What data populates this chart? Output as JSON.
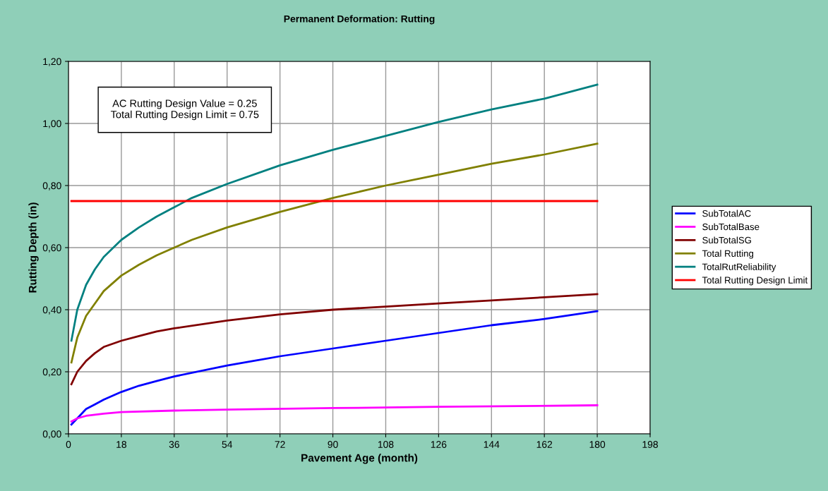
{
  "chart_data": {
    "type": "line",
    "title": "Permanent Deformation: Rutting",
    "xlabel": "Pavement Age (month)",
    "ylabel": "Rutting Depth (in)",
    "annotations": [
      "AC Rutting Design Value = 0.25\nTotal Rutting Design Limit = 0.75"
    ],
    "xlim": [
      0,
      198
    ],
    "xticks": [
      0,
      18,
      36,
      54,
      72,
      90,
      108,
      126,
      144,
      162,
      180,
      198
    ],
    "ylim": [
      0,
      1.2
    ],
    "yticks": [
      {
        "value": 0,
        "label": "0,00"
      },
      {
        "value": 0.2,
        "label": "0,20"
      },
      {
        "value": 0.4,
        "label": "0,40"
      },
      {
        "value": 0.6,
        "label": "0,60"
      },
      {
        "value": 0.8,
        "label": "0,80"
      },
      {
        "value": 1.0,
        "label": "1,00"
      },
      {
        "value": 1.2,
        "label": "1,20"
      }
    ],
    "grid": true,
    "legend": "right",
    "marker": "none",
    "line_style": "solid",
    "series": [
      {
        "name": "SubTotalAC",
        "color": "#0000ff",
        "x": [
          1,
          3,
          6,
          9,
          12,
          18,
          24,
          30,
          36,
          54,
          72,
          90,
          108,
          126,
          144,
          162,
          180
        ],
        "values": [
          0.03,
          0.05,
          0.08,
          0.095,
          0.11,
          0.135,
          0.155,
          0.17,
          0.185,
          0.22,
          0.25,
          0.275,
          0.3,
          0.325,
          0.35,
          0.37,
          0.395
        ]
      },
      {
        "name": "SubTotalBase",
        "color": "#ff00ff",
        "x": [
          1,
          3,
          6,
          12,
          18,
          36,
          54,
          90,
          126,
          180
        ],
        "values": [
          0.04,
          0.05,
          0.058,
          0.065,
          0.07,
          0.075,
          0.078,
          0.083,
          0.087,
          0.092
        ]
      },
      {
        "name": "SubTotalSG",
        "color": "#800000",
        "x": [
          1,
          3,
          6,
          9,
          12,
          18,
          24,
          30,
          36,
          54,
          72,
          90,
          108,
          126,
          144,
          162,
          180
        ],
        "values": [
          0.16,
          0.2,
          0.235,
          0.26,
          0.28,
          0.3,
          0.315,
          0.33,
          0.34,
          0.365,
          0.385,
          0.4,
          0.41,
          0.42,
          0.43,
          0.44,
          0.45
        ]
      },
      {
        "name": "Total Rutting",
        "color": "#808000",
        "x": [
          1,
          3,
          6,
          9,
          12,
          18,
          24,
          30,
          36,
          42,
          54,
          72,
          90,
          108,
          126,
          144,
          162,
          180
        ],
        "values": [
          0.23,
          0.31,
          0.38,
          0.42,
          0.46,
          0.51,
          0.545,
          0.575,
          0.6,
          0.625,
          0.665,
          0.715,
          0.76,
          0.8,
          0.835,
          0.87,
          0.9,
          0.935
        ]
      },
      {
        "name": "TotalRutReliability",
        "color": "#008080",
        "x": [
          1,
          3,
          6,
          9,
          12,
          18,
          24,
          30,
          36,
          42,
          54,
          72,
          90,
          108,
          126,
          144,
          162,
          180
        ],
        "values": [
          0.3,
          0.4,
          0.48,
          0.53,
          0.57,
          0.625,
          0.665,
          0.7,
          0.73,
          0.76,
          0.805,
          0.865,
          0.915,
          0.96,
          1.005,
          1.045,
          1.08,
          1.125
        ]
      },
      {
        "name": "Total Rutting Design Limit",
        "color": "#ff0000",
        "x": [
          1,
          180
        ],
        "values": [
          0.75,
          0.75
        ]
      }
    ]
  }
}
